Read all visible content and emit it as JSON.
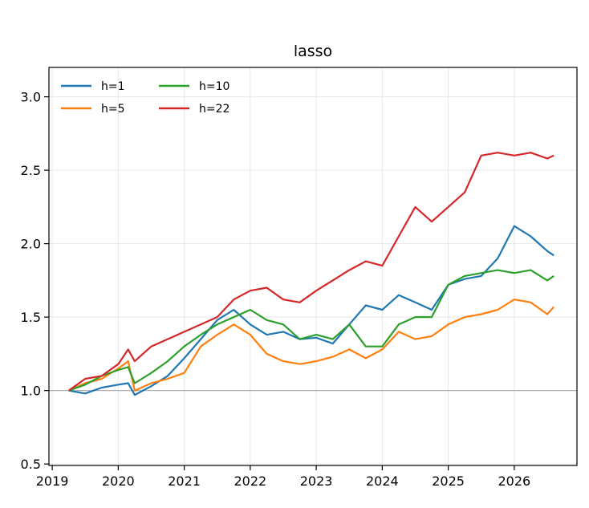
{
  "chart_data": {
    "type": "line",
    "title": "lasso",
    "xlabel": "",
    "ylabel": "",
    "xlim": [
      2018.95,
      2026.95
    ],
    "ylim": [
      0.49,
      3.2
    ],
    "x_ticks": [
      2019,
      2020,
      2021,
      2022,
      2023,
      2024,
      2025,
      2026
    ],
    "x_tick_labels": [
      "2019",
      "2020",
      "2021",
      "2022",
      "2023",
      "2024",
      "2025",
      "2026"
    ],
    "y_ticks": [
      0.5,
      1.0,
      1.5,
      2.0,
      2.5,
      3.0
    ],
    "y_tick_labels": [
      "0.5",
      "1.0",
      "1.5",
      "2.0",
      "2.5",
      "3.0"
    ],
    "grid": true,
    "reference_line_y": 1.0,
    "legend_position": "top-left",
    "legend_columns": 2,
    "x": [
      2019.25,
      2019.5,
      2019.75,
      2020.0,
      2020.15,
      2020.25,
      2020.5,
      2020.75,
      2021.0,
      2021.25,
      2021.5,
      2021.75,
      2022.0,
      2022.25,
      2022.5,
      2022.75,
      2023.0,
      2023.25,
      2023.5,
      2023.75,
      2024.0,
      2024.25,
      2024.5,
      2024.75,
      2025.0,
      2025.25,
      2025.5,
      2025.75,
      2026.0,
      2026.25,
      2026.5,
      2026.6
    ],
    "series": [
      {
        "name": "h=1",
        "color": "#1f77b4",
        "values": [
          1.0,
          0.98,
          1.02,
          1.04,
          1.05,
          0.97,
          1.03,
          1.1,
          1.22,
          1.35,
          1.48,
          1.55,
          1.45,
          1.38,
          1.4,
          1.35,
          1.36,
          1.32,
          1.45,
          1.58,
          1.55,
          1.65,
          1.6,
          1.55,
          1.72,
          1.76,
          1.78,
          1.9,
          2.12,
          2.05,
          1.95,
          1.92
        ]
      },
      {
        "name": "h=5",
        "color": "#ff7f0e",
        "values": [
          1.0,
          1.05,
          1.08,
          1.15,
          1.2,
          1.0,
          1.05,
          1.08,
          1.12,
          1.3,
          1.38,
          1.45,
          1.38,
          1.25,
          1.2,
          1.18,
          1.2,
          1.23,
          1.28,
          1.22,
          1.28,
          1.4,
          1.35,
          1.37,
          1.45,
          1.5,
          1.52,
          1.55,
          1.62,
          1.6,
          1.52,
          1.57
        ]
      },
      {
        "name": "h=10",
        "color": "#2ca02c",
        "values": [
          1.0,
          1.04,
          1.1,
          1.14,
          1.16,
          1.05,
          1.12,
          1.2,
          1.3,
          1.38,
          1.45,
          1.5,
          1.55,
          1.48,
          1.45,
          1.35,
          1.38,
          1.35,
          1.45,
          1.3,
          1.3,
          1.45,
          1.5,
          1.5,
          1.72,
          1.78,
          1.8,
          1.82,
          1.8,
          1.82,
          1.75,
          1.78
        ]
      },
      {
        "name": "h=22",
        "color": "#d62728",
        "values": [
          1.0,
          1.08,
          1.1,
          1.18,
          1.28,
          1.2,
          1.3,
          1.35,
          1.4,
          1.45,
          1.5,
          1.62,
          1.68,
          1.7,
          1.62,
          1.6,
          1.68,
          1.75,
          1.82,
          1.88,
          1.85,
          2.05,
          2.25,
          2.15,
          2.25,
          2.35,
          2.6,
          2.62,
          2.6,
          2.62,
          2.58,
          2.6
        ]
      }
    ]
  }
}
